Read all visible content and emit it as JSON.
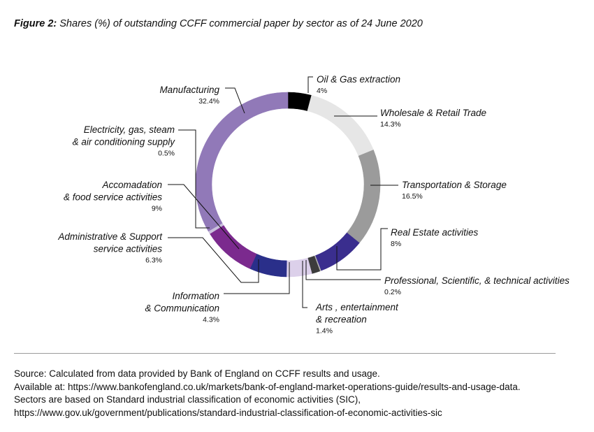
{
  "figure": {
    "title_lead": "Figure 2:",
    "title_rest": "Shares (%) of outstanding CCFF commercial paper by sector as of 24 June 2020"
  },
  "chart_data": {
    "type": "pie",
    "style": "donut",
    "start": "top, clockwise",
    "slices": [
      {
        "name_lines": [
          "Oil & Gas extraction"
        ],
        "label": "4%",
        "value": 4,
        "color": "#000000"
      },
      {
        "name_lines": [
          "Wholesale & Retail Trade"
        ],
        "label": "14.3%",
        "value": 14.3,
        "color": "#e6e6e6"
      },
      {
        "name_lines": [
          "Transportation & Storage"
        ],
        "label": "16.5%",
        "value": 16.5,
        "color": "#9b9b9b"
      },
      {
        "name_lines": [
          "Real Estate activities"
        ],
        "label": "8%",
        "value": 8,
        "color": "#3a2e8e"
      },
      {
        "name_lines": [
          "Professional, Scientific, & technical activities"
        ],
        "label": "0.2%",
        "value": 0.2,
        "color": "#b5b5b5"
      },
      {
        "name_lines": [
          "Arts , entertainment",
          "& recreation"
        ],
        "label": "1.4%",
        "value": 1.4,
        "color": "#3c3c3c"
      },
      {
        "name_lines": [
          "Information",
          "& Communication"
        ],
        "label": "4.3%",
        "value": 4.3,
        "color": "#dcd0ea"
      },
      {
        "name_lines": [
          "Administrative & Support",
          "service activities"
        ],
        "label": "6.3%",
        "value": 6.3,
        "color": "#2a2f8a"
      },
      {
        "name_lines": [
          "Accomadation",
          "& food service activities"
        ],
        "label": "9%",
        "value": 9,
        "color": "#7b2a8e"
      },
      {
        "name_lines": [
          "Electricity, gas, steam",
          "& air conditioning supply"
        ],
        "label": "0.5%",
        "value": 0.5,
        "color": "#c9c0dc"
      },
      {
        "name_lines": [
          "Manufacturing"
        ],
        "label": "32.4%",
        "value": 32.4,
        "color": "#9179b8"
      }
    ]
  },
  "source": {
    "lines": [
      "Source: Calculated from data provided by Bank of England on CCFF results and usage.",
      "Available at: https://www.bankofengland.co.uk/markets/bank-of-england-market-operations-guide/results-and-usage-data.",
      "Sectors are based on Standard industrial classification of economic activities (SIC),",
      "https://www.gov.uk/government/publications/standard-industrial-classification-of-economic-activities-sic"
    ]
  }
}
